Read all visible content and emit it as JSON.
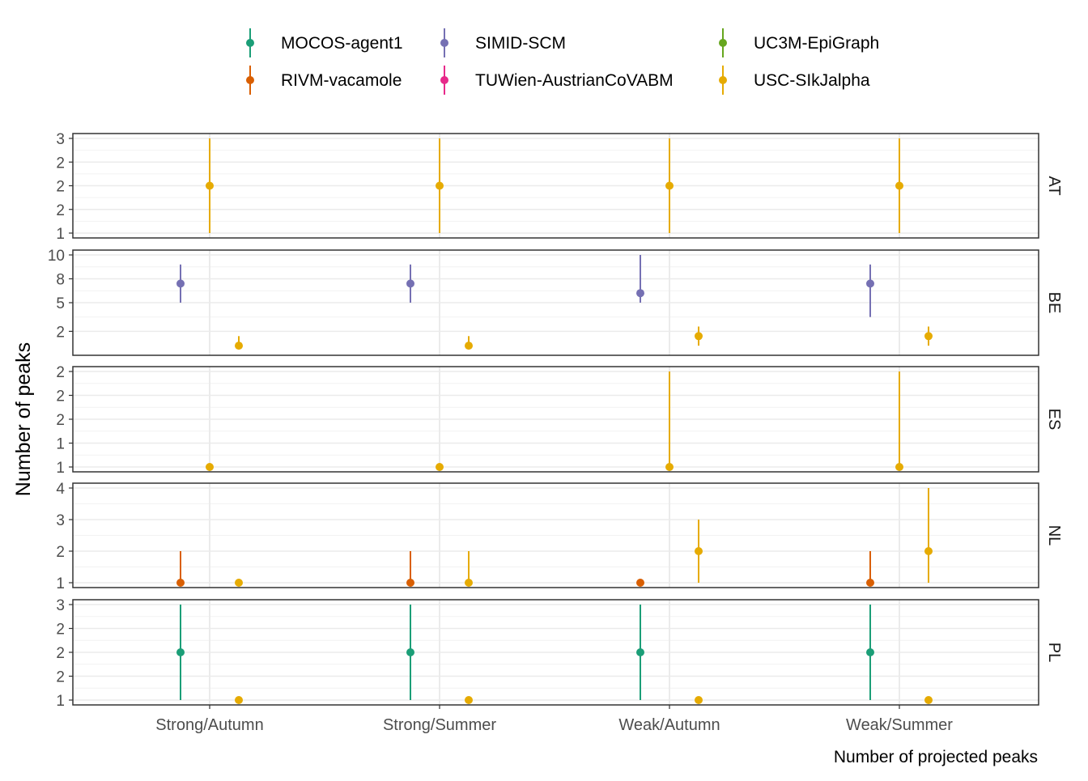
{
  "chart_data": {
    "type": "errorbar-point",
    "title": "",
    "xlabel": "Number of projected peaks",
    "ylabel": "Number of peaks",
    "categories": [
      "Strong/Autumn",
      "Strong/Summer",
      "Weak/Autumn",
      "Weak/Summer"
    ],
    "legend": {
      "placement": "top",
      "entries": [
        {
          "name": "MOCOS-agent1",
          "color": "#1B9E77"
        },
        {
          "name": "SIMID-SCM",
          "color": "#7570B3"
        },
        {
          "name": "UC3M-EpiGraph",
          "color": "#66A61E"
        },
        {
          "name": "RIVM-vacamole",
          "color": "#D95F02"
        },
        {
          "name": "TUWien-AustrianCoVABM",
          "color": "#E7298A"
        },
        {
          "name": "USC-SIkJalpha",
          "color": "#E6AB02"
        }
      ]
    },
    "panels": [
      {
        "label": "AT",
        "ylim": [
          1,
          3
        ],
        "yticks": [
          1,
          1.5,
          2,
          2.5,
          3
        ],
        "yticklabels": [
          "1",
          "2",
          "2",
          "2",
          "3"
        ],
        "series": [
          {
            "model": "USC-SIkJalpha",
            "points": [
              {
                "category": "Strong/Autumn",
                "y": 2,
                "lo": 1,
                "hi": 3
              },
              {
                "category": "Strong/Summer",
                "y": 2,
                "lo": 1,
                "hi": 3
              },
              {
                "category": "Weak/Autumn",
                "y": 2,
                "lo": 1,
                "hi": 3
              },
              {
                "category": "Weak/Summer",
                "y": 2,
                "lo": 1,
                "hi": 3
              }
            ]
          }
        ]
      },
      {
        "label": "BE",
        "ylim": [
          0,
          10
        ],
        "yticks": [
          2,
          5,
          7.5,
          10
        ],
        "yticklabels": [
          "2",
          "5",
          "8",
          "10"
        ],
        "series": [
          {
            "model": "SIMID-SCM",
            "points": [
              {
                "category": "Strong/Autumn",
                "y": 7,
                "lo": 5,
                "hi": 9
              },
              {
                "category": "Strong/Summer",
                "y": 7,
                "lo": 5,
                "hi": 9
              },
              {
                "category": "Weak/Autumn",
                "y": 6,
                "lo": 5,
                "hi": 10
              },
              {
                "category": "Weak/Summer",
                "y": 7,
                "lo": 3.5,
                "hi": 9
              }
            ]
          },
          {
            "model": "USC-SIkJalpha",
            "points": [
              {
                "category": "Strong/Autumn",
                "y": 0.5,
                "lo": 0.5,
                "hi": 1.5
              },
              {
                "category": "Strong/Summer",
                "y": 0.5,
                "lo": 0.5,
                "hi": 1.5
              },
              {
                "category": "Weak/Autumn",
                "y": 1.5,
                "lo": 0.5,
                "hi": 2.5
              },
              {
                "category": "Weak/Summer",
                "y": 1.5,
                "lo": 0.5,
                "hi": 2.5
              }
            ]
          }
        ]
      },
      {
        "label": "ES",
        "ylim": [
          1,
          2
        ],
        "yticks": [
          1,
          1.25,
          1.5,
          1.75,
          2
        ],
        "yticklabels": [
          "1",
          "1",
          "2",
          "2",
          "2"
        ],
        "series": [
          {
            "model": "USC-SIkJalpha",
            "points": [
              {
                "category": "Strong/Autumn",
                "y": 1,
                "lo": 1,
                "hi": 1
              },
              {
                "category": "Strong/Summer",
                "y": 1,
                "lo": 1,
                "hi": 1
              },
              {
                "category": "Weak/Autumn",
                "y": 1,
                "lo": 1,
                "hi": 2
              },
              {
                "category": "Weak/Summer",
                "y": 1,
                "lo": 1,
                "hi": 2
              }
            ]
          }
        ]
      },
      {
        "label": "NL",
        "ylim": [
          1,
          4
        ],
        "yticks": [
          1,
          2,
          3,
          4
        ],
        "yticklabels": [
          "1",
          "2",
          "3",
          "4"
        ],
        "series": [
          {
            "model": "RIVM-vacamole",
            "points": [
              {
                "category": "Strong/Autumn",
                "y": 1,
                "lo": 1,
                "hi": 2
              },
              {
                "category": "Strong/Summer",
                "y": 1,
                "lo": 1,
                "hi": 2
              },
              {
                "category": "Weak/Autumn",
                "y": 1,
                "lo": 1,
                "hi": 1
              },
              {
                "category": "Weak/Summer",
                "y": 1,
                "lo": 1,
                "hi": 2
              }
            ]
          },
          {
            "model": "USC-SIkJalpha",
            "points": [
              {
                "category": "Strong/Autumn",
                "y": 1,
                "lo": 1,
                "hi": 1
              },
              {
                "category": "Strong/Summer",
                "y": 1,
                "lo": 1,
                "hi": 2
              },
              {
                "category": "Weak/Autumn",
                "y": 2,
                "lo": 1,
                "hi": 3
              },
              {
                "category": "Weak/Summer",
                "y": 2,
                "lo": 1,
                "hi": 4
              }
            ]
          }
        ]
      },
      {
        "label": "PL",
        "ylim": [
          1,
          3
        ],
        "yticks": [
          1,
          1.5,
          2,
          2.5,
          3
        ],
        "yticklabels": [
          "1",
          "2",
          "2",
          "2",
          "3"
        ],
        "series": [
          {
            "model": "MOCOS-agent1",
            "points": [
              {
                "category": "Strong/Autumn",
                "y": 2,
                "lo": 1,
                "hi": 3
              },
              {
                "category": "Strong/Summer",
                "y": 2,
                "lo": 1,
                "hi": 3
              },
              {
                "category": "Weak/Autumn",
                "y": 2,
                "lo": 1,
                "hi": 3
              },
              {
                "category": "Weak/Summer",
                "y": 2,
                "lo": 1,
                "hi": 3
              }
            ]
          },
          {
            "model": "USC-SIkJalpha",
            "points": [
              {
                "category": "Strong/Autumn",
                "y": 1,
                "lo": 1,
                "hi": 1
              },
              {
                "category": "Strong/Summer",
                "y": 1,
                "lo": 1,
                "hi": 1
              },
              {
                "category": "Weak/Autumn",
                "y": 1,
                "lo": 1,
                "hi": 1
              },
              {
                "category": "Weak/Summer",
                "y": 1,
                "lo": 1,
                "hi": 1
              }
            ]
          }
        ]
      }
    ]
  }
}
